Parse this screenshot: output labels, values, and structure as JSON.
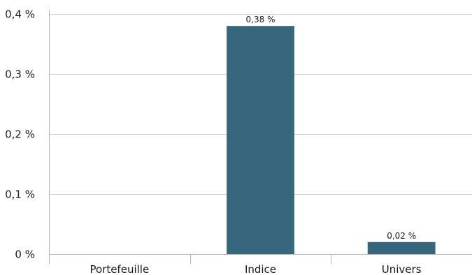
{
  "chart_data": {
    "type": "bar",
    "categories": [
      "Portefeuille",
      "Indice",
      "Univers"
    ],
    "values": [
      0,
      0.38,
      0.02
    ],
    "data_labels": [
      "",
      "0,38 %",
      "0,02 %"
    ],
    "y_ticks": [
      0,
      0.1,
      0.2,
      0.3,
      0.4
    ],
    "y_tick_labels": [
      "0 %",
      "0,1 %",
      "0,2 %",
      "0,3 %",
      "0,4 %"
    ],
    "ylim": [
      0,
      0.4
    ],
    "grid": true,
    "legend": "none",
    "colors": {
      "bar": "#36677d",
      "grid": "#cfcfcf",
      "axis": "#b3b3b3",
      "text": "#1a1a1a"
    }
  }
}
